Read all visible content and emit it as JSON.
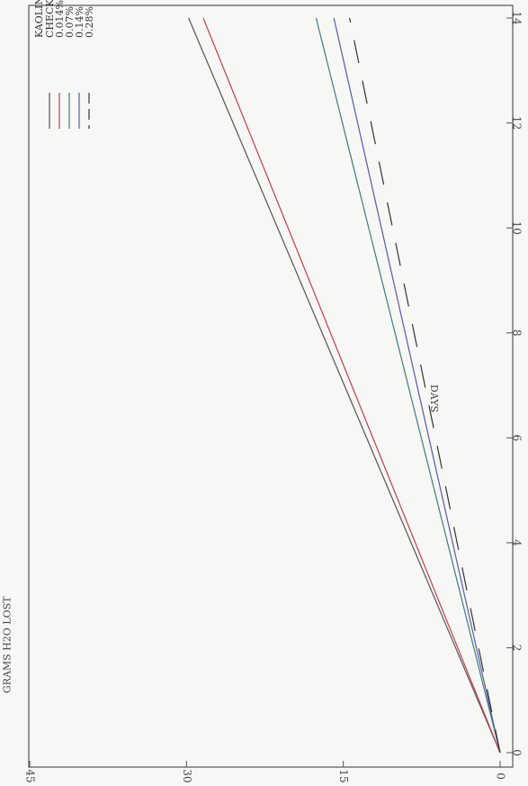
{
  "chart_data": {
    "type": "line",
    "orientation": "rotated-90-clockwise",
    "xlabel": "DAYS",
    "ylabel": "GRAMS H2O LOST",
    "xlim": [
      0,
      14
    ],
    "ylim": [
      0,
      45
    ],
    "x_ticks": [
      "0",
      "2",
      "4",
      "6",
      "8",
      "10",
      "12",
      "14"
    ],
    "y_ticks": [
      "0",
      "15",
      "30",
      "45"
    ],
    "legend": {
      "title": "KAOLINITE SUBSOIL",
      "placement": "top-left"
    },
    "series": [
      {
        "name": "CHECK",
        "color": "#555555",
        "dash": "solid",
        "x": [
          0,
          14
        ],
        "y": [
          0,
          29.8
        ]
      },
      {
        "name": "0.014%",
        "color": "#c0404a",
        "dash": "solid",
        "x": [
          0,
          14
        ],
        "y": [
          0,
          28.4
        ]
      },
      {
        "name": "0.07%",
        "color": "#3d7f78",
        "dash": "solid",
        "x": [
          0,
          14
        ],
        "y": [
          0,
          17.6
        ]
      },
      {
        "name": "0.14%",
        "color": "#5a58a8",
        "dash": "solid",
        "x": [
          0,
          14
        ],
        "y": [
          0,
          15.9
        ]
      },
      {
        "name": "0.28%",
        "color": "#333333",
        "dash": "dashed",
        "x": [
          0,
          14
        ],
        "y": [
          0,
          14.4
        ]
      }
    ]
  }
}
